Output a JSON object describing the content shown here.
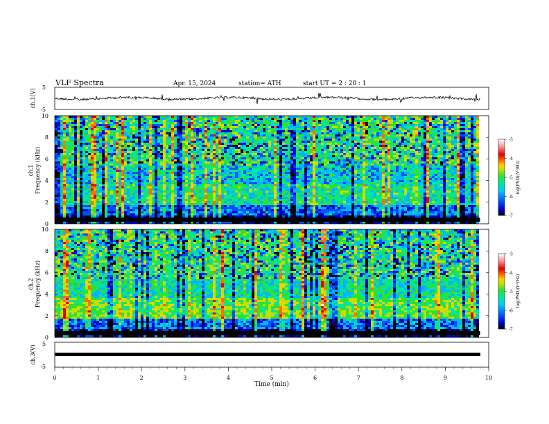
{
  "header": {
    "title": "VLF  Spectra",
    "date": "Apr. 15, 2024",
    "station": "station= ATH",
    "start_ut": "start  UT  =    2  : 20 : 1"
  },
  "chart_data": [
    {
      "type": "line",
      "title": "",
      "ylabel": "ch.1(V)",
      "xlim": [
        0,
        10
      ],
      "ylim": [
        -5,
        5
      ],
      "yticks": [
        "5",
        "-5"
      ],
      "trace_level": 0,
      "description": "noisy waveform centered near 0 V with spikes"
    },
    {
      "type": "heatmap",
      "ylabel": "ch.1\nFrequency  (kHz)",
      "xlim": [
        0,
        10
      ],
      "ylim": [
        0,
        10
      ],
      "yticks": [
        "0",
        "2",
        "4",
        "6",
        "8",
        "10"
      ],
      "colorbar": {
        "label": "log(PSD)(V²/Hz)",
        "range": [
          -7,
          -3
        ],
        "ticks": [
          "-3",
          "-4",
          "-5",
          "-6",
          "-7"
        ]
      },
      "data_end_min": 9.8
    },
    {
      "type": "heatmap",
      "ylabel": "ch.2\nFrequency  (kHz)",
      "xlim": [
        0,
        10
      ],
      "ylim": [
        0,
        10
      ],
      "yticks": [
        "0",
        "2",
        "4",
        "6",
        "8",
        "10"
      ],
      "colorbar": {
        "label": "log(PSD)(V²/Hz)",
        "range": [
          -7,
          -3
        ],
        "ticks": [
          "-3",
          "-4",
          "-5",
          "-6",
          "-7"
        ]
      },
      "data_end_min": 9.8
    },
    {
      "type": "line",
      "ylabel": "ch.3(V)",
      "xlim": [
        0,
        10
      ],
      "ylim": [
        -5,
        5
      ],
      "yticks": [
        "5",
        "-5"
      ],
      "trace_level": 0
    }
  ],
  "xaxis": {
    "label": "Time  (min)",
    "ticks": [
      "0",
      "1",
      "2",
      "3",
      "4",
      "5",
      "6",
      "7",
      "8",
      "9",
      "10"
    ]
  },
  "colors": {
    "scale": [
      "#000000",
      "#0000d0",
      "#0050ff",
      "#00b4ff",
      "#00e6a0",
      "#30e030",
      "#c0e000",
      "#ffd000",
      "#ff7000",
      "#e00000",
      "#ff8080",
      "#ffffff"
    ]
  }
}
